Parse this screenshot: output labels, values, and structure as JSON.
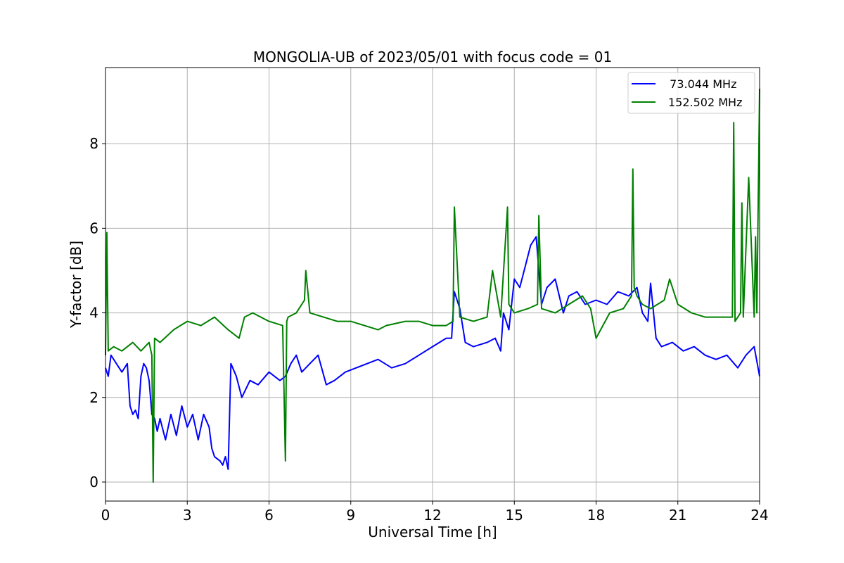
{
  "chart_data": {
    "type": "line",
    "title": "MONGOLIA-UB of 2023/05/01 with focus code = 01",
    "xlabel": "Universal Time [h]",
    "ylabel": "Y-factor [dB]",
    "xlim": [
      0,
      24
    ],
    "ylim": [
      -0.45,
      9.8
    ],
    "xticks": [
      0,
      3,
      6,
      9,
      12,
      15,
      18,
      21,
      24
    ],
    "yticks": [
      0,
      2,
      4,
      6,
      8
    ],
    "grid": true,
    "legend_position": "top-right",
    "colors": {
      "series1": "#0000ff",
      "series2": "#008000"
    },
    "series": [
      {
        "name": "  73.044 MHz",
        "color": "#0000ff",
        "x": [
          0.0,
          0.1,
          0.2,
          0.4,
          0.6,
          0.8,
          0.9,
          1.0,
          1.1,
          1.2,
          1.3,
          1.4,
          1.5,
          1.6,
          1.7,
          1.8,
          1.9,
          2.0,
          2.2,
          2.4,
          2.6,
          2.8,
          3.0,
          3.2,
          3.4,
          3.6,
          3.8,
          3.9,
          4.0,
          4.2,
          4.3,
          4.4,
          4.5,
          4.6,
          4.8,
          5.0,
          5.3,
          5.6,
          6.0,
          6.4,
          6.6,
          6.8,
          7.0,
          7.2,
          7.5,
          7.8,
          8.1,
          8.4,
          8.8,
          9.2,
          9.6,
          10.0,
          10.5,
          11.0,
          11.5,
          12.0,
          12.5,
          12.7,
          12.8,
          13.0,
          13.2,
          13.5,
          14.0,
          14.3,
          14.5,
          14.6,
          14.8,
          15.0,
          15.2,
          15.4,
          15.6,
          15.8,
          16.0,
          16.2,
          16.5,
          16.8,
          17.0,
          17.3,
          17.6,
          18.0,
          18.4,
          18.8,
          19.2,
          19.5,
          19.7,
          19.9,
          20.0,
          20.2,
          20.4,
          20.8,
          21.2,
          21.6,
          22.0,
          22.4,
          22.8,
          23.2,
          23.5,
          23.8,
          24.0
        ],
        "values": [
          2.7,
          2.5,
          3.0,
          2.8,
          2.6,
          2.8,
          1.8,
          1.6,
          1.7,
          1.5,
          2.5,
          2.8,
          2.7,
          2.4,
          1.6,
          1.5,
          1.2,
          1.5,
          1.0,
          1.6,
          1.1,
          1.8,
          1.3,
          1.6,
          1.0,
          1.6,
          1.3,
          0.8,
          0.6,
          0.5,
          0.4,
          0.6,
          0.3,
          2.8,
          2.5,
          2.0,
          2.4,
          2.3,
          2.6,
          2.4,
          2.5,
          2.8,
          3.0,
          2.6,
          2.8,
          3.0,
          2.3,
          2.4,
          2.6,
          2.7,
          2.8,
          2.9,
          2.7,
          2.8,
          3.0,
          3.2,
          3.4,
          3.4,
          4.5,
          4.1,
          3.3,
          3.2,
          3.3,
          3.4,
          3.1,
          4.0,
          3.6,
          4.8,
          4.6,
          5.1,
          5.6,
          5.8,
          4.2,
          4.6,
          4.8,
          4.0,
          4.4,
          4.5,
          4.2,
          4.3,
          4.2,
          4.5,
          4.4,
          4.6,
          4.0,
          3.8,
          4.7,
          3.4,
          3.2,
          3.3,
          3.1,
          3.2,
          3.0,
          2.9,
          3.0,
          2.7,
          3.0,
          3.2,
          2.5
        ]
      },
      {
        "name": "152.502 MHz",
        "color": "#008000",
        "x": [
          0.0,
          0.05,
          0.1,
          0.3,
          0.6,
          1.0,
          1.3,
          1.6,
          1.7,
          1.75,
          1.8,
          2.0,
          2.5,
          3.0,
          3.5,
          4.0,
          4.5,
          4.9,
          5.1,
          5.4,
          6.0,
          6.5,
          6.6,
          6.65,
          6.7,
          7.0,
          7.3,
          7.35,
          7.5,
          8.0,
          8.5,
          9.0,
          10.0,
          10.3,
          11.0,
          11.5,
          12.0,
          12.5,
          12.75,
          12.8,
          13.0,
          13.5,
          14.0,
          14.2,
          14.5,
          14.75,
          14.8,
          15.0,
          15.5,
          15.85,
          15.9,
          16.0,
          16.5,
          17.0,
          17.5,
          17.8,
          18.0,
          18.5,
          19.0,
          19.3,
          19.35,
          19.4,
          19.5,
          19.7,
          20.0,
          20.5,
          20.7,
          21.0,
          21.5,
          22.0,
          22.5,
          23.0,
          23.05,
          23.1,
          23.3,
          23.35,
          23.4,
          23.6,
          23.8,
          23.85,
          23.9,
          24.0
        ],
        "values": [
          3.0,
          5.9,
          3.1,
          3.2,
          3.1,
          3.3,
          3.1,
          3.3,
          3.0,
          0.0,
          3.4,
          3.3,
          3.6,
          3.8,
          3.7,
          3.9,
          3.6,
          3.4,
          3.9,
          4.0,
          3.8,
          3.7,
          0.5,
          3.8,
          3.9,
          4.0,
          4.3,
          5.0,
          4.0,
          3.9,
          3.8,
          3.8,
          3.6,
          3.7,
          3.8,
          3.8,
          3.7,
          3.7,
          3.8,
          6.5,
          3.9,
          3.8,
          3.9,
          5.0,
          3.9,
          6.5,
          4.2,
          4.0,
          4.1,
          4.2,
          6.3,
          4.1,
          4.0,
          4.2,
          4.4,
          4.1,
          3.4,
          4.0,
          4.1,
          4.4,
          7.4,
          4.6,
          4.4,
          4.2,
          4.1,
          4.3,
          4.8,
          4.2,
          4.0,
          3.9,
          3.9,
          3.9,
          8.5,
          3.8,
          4.0,
          6.6,
          3.9,
          7.2,
          3.9,
          5.8,
          4.0,
          9.3
        ]
      }
    ]
  }
}
